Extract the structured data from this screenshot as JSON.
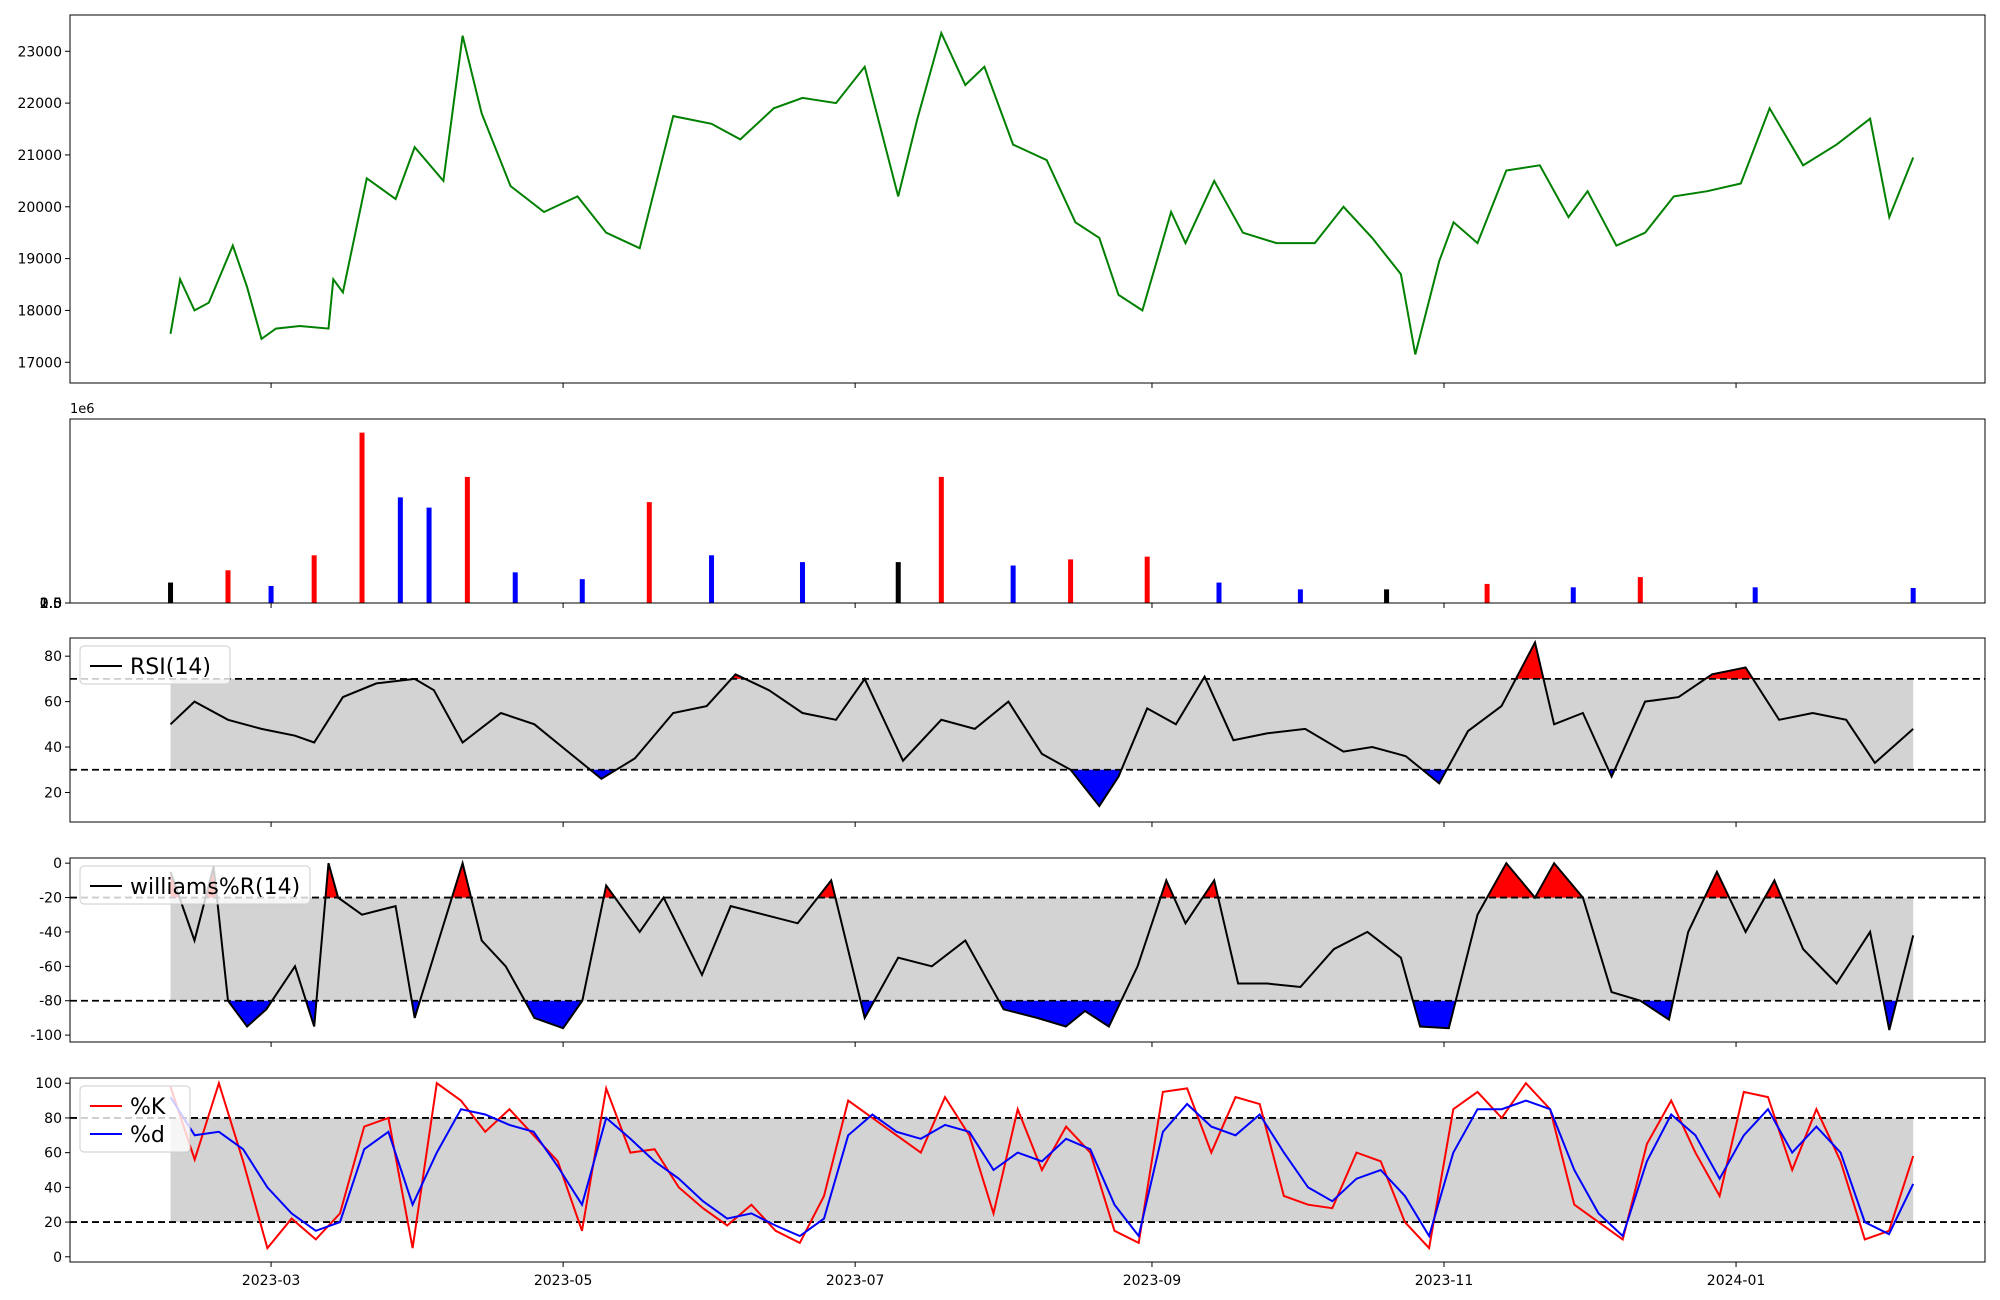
{
  "chart_data": [
    {
      "panel": "price",
      "type": "line",
      "color": "#008000",
      "ylim": [
        16600,
        23700
      ],
      "yticks": [
        "17000",
        "18000",
        "19000",
        "20000",
        "21000",
        "22000",
        "23000"
      ],
      "x": [
        "2023-02-08",
        "2023-02-10",
        "2023-02-13",
        "2023-02-16",
        "2023-02-21",
        "2023-02-24",
        "2023-02-27",
        "2023-03-02",
        "2023-03-07",
        "2023-03-13",
        "2023-03-14",
        "2023-03-16",
        "2023-03-21",
        "2023-03-27",
        "2023-03-31",
        "2023-04-06",
        "2023-04-10",
        "2023-04-14",
        "2023-04-20",
        "2023-04-27",
        "2023-05-04",
        "2023-05-10",
        "2023-05-17",
        "2023-05-24",
        "2023-06-01",
        "2023-06-07",
        "2023-06-14",
        "2023-06-20",
        "2023-06-27",
        "2023-07-03",
        "2023-07-10",
        "2023-07-14",
        "2023-07-19",
        "2023-07-24",
        "2023-07-28",
        "2023-08-03",
        "2023-08-10",
        "2023-08-16",
        "2023-08-21",
        "2023-08-25",
        "2023-08-30",
        "2023-09-05",
        "2023-09-08",
        "2023-09-14",
        "2023-09-20",
        "2023-09-27",
        "2023-10-05",
        "2023-10-11",
        "2023-10-17",
        "2023-10-23",
        "2023-10-26",
        "2023-10-31",
        "2023-11-03",
        "2023-11-08",
        "2023-11-14",
        "2023-11-21",
        "2023-11-27",
        "2023-12-01",
        "2023-12-07",
        "2023-12-13",
        "2023-12-19",
        "2023-12-26",
        "2024-01-02",
        "2024-01-08",
        "2024-01-15",
        "2024-01-22",
        "2024-01-29",
        "2024-02-02",
        "2024-02-07"
      ],
      "values": [
        17550,
        18600,
        18000,
        18150,
        19250,
        18450,
        17450,
        17650,
        17700,
        17650,
        18600,
        18350,
        20550,
        20150,
        21150,
        20500,
        23300,
        21800,
        20400,
        19900,
        20200,
        19500,
        19200,
        21750,
        21600,
        21300,
        21900,
        22100,
        22000,
        22700,
        20200,
        21700,
        23350,
        22350,
        22700,
        21200,
        20900,
        19700,
        19400,
        18300,
        18000,
        19900,
        19300,
        20500,
        19500,
        19300,
        19300,
        20000,
        19400,
        18700,
        17150,
        18950,
        19700,
        19300,
        20700,
        20800,
        19800,
        20300,
        19250,
        19500,
        20200,
        20300,
        20450,
        21900,
        20800,
        21200,
        21700,
        19800,
        20950
      ]
    },
    {
      "panel": "volume",
      "type": "bar",
      "ylim": [
        0,
        2700000
      ],
      "yticks": [
        "0.0",
        "0.5",
        "1.0",
        "1.5",
        "2.0",
        "2.5"
      ],
      "offset_text": "1e6",
      "colors": {
        "up": "#ff0000",
        "down": "#0000ff",
        "flat": "#000000"
      },
      "x": [
        "2023-02-08",
        "2023-02-20",
        "2023-03-01",
        "2023-03-10",
        "2023-03-20",
        "2023-03-28",
        "2023-04-03",
        "2023-04-11",
        "2023-04-21",
        "2023-05-05",
        "2023-05-19",
        "2023-06-01",
        "2023-06-20",
        "2023-07-10",
        "2023-07-19",
        "2023-08-03",
        "2023-08-15",
        "2023-08-31",
        "2023-09-15",
        "2023-10-02",
        "2023-10-20",
        "2023-11-10",
        "2023-11-28",
        "2023-12-12",
        "2024-01-05",
        "2024-02-07"
      ],
      "values": [
        300000,
        480000,
        250000,
        700000,
        2500000,
        1550000,
        1400000,
        1850000,
        450000,
        350000,
        1480000,
        700000,
        600000,
        600000,
        1850000,
        550000,
        640000,
        680000,
        300000,
        200000,
        200000,
        280000,
        230000,
        380000,
        230000,
        220000
      ]
    },
    {
      "panel": "rsi",
      "type": "line",
      "legend": "RSI(14)",
      "ylim": [
        7,
        88
      ],
      "yticks": [
        "20",
        "40",
        "60",
        "80"
      ],
      "band": [
        30,
        70
      ],
      "overbought_fill": "#ff0000",
      "oversold_fill": "#0000ff",
      "x": [
        "2023-02-08",
        "2023-02-13",
        "2023-02-20",
        "2023-02-27",
        "2023-03-06",
        "2023-03-10",
        "2023-03-16",
        "2023-03-23",
        "2023-03-31",
        "2023-04-04",
        "2023-04-10",
        "2023-04-18",
        "2023-04-25",
        "2023-05-02",
        "2023-05-09",
        "2023-05-16",
        "2023-05-24",
        "2023-05-31",
        "2023-06-06",
        "2023-06-13",
        "2023-06-20",
        "2023-06-27",
        "2023-07-03",
        "2023-07-11",
        "2023-07-19",
        "2023-07-26",
        "2023-08-02",
        "2023-08-09",
        "2023-08-15",
        "2023-08-21",
        "2023-08-25",
        "2023-08-31",
        "2023-09-06",
        "2023-09-12",
        "2023-09-18",
        "2023-09-25",
        "2023-10-03",
        "2023-10-11",
        "2023-10-17",
        "2023-10-24",
        "2023-10-31",
        "2023-11-06",
        "2023-11-13",
        "2023-11-20",
        "2023-11-24",
        "2023-11-30",
        "2023-12-06",
        "2023-12-13",
        "2023-12-20",
        "2023-12-27",
        "2024-01-03",
        "2024-01-10",
        "2024-01-17",
        "2024-01-24",
        "2024-01-30",
        "2024-02-07"
      ],
      "values": [
        50,
        60,
        52,
        48,
        45,
        42,
        62,
        68,
        70,
        65,
        42,
        55,
        50,
        38,
        26,
        35,
        55,
        58,
        72,
        65,
        55,
        52,
        70,
        34,
        52,
        48,
        60,
        37,
        30,
        14,
        27,
        57,
        50,
        71,
        43,
        46,
        48,
        38,
        40,
        36,
        24,
        47,
        58,
        86,
        50,
        55,
        27,
        60,
        62,
        72,
        75,
        52,
        55,
        52,
        33,
        48
      ]
    },
    {
      "panel": "williams",
      "type": "line",
      "legend": "williams%R(14)",
      "ylim": [
        -104,
        3
      ],
      "yticks": [
        "0",
        "-20",
        "-40",
        "-60",
        "-80",
        "-100"
      ],
      "band": [
        -80,
        -20
      ],
      "overbought_fill": "#ff0000",
      "oversold_fill": "#0000ff",
      "x": [
        "2023-02-08",
        "2023-02-13",
        "2023-02-17",
        "2023-02-20",
        "2023-02-24",
        "2023-02-28",
        "2023-03-06",
        "2023-03-10",
        "2023-03-13",
        "2023-03-15",
        "2023-03-20",
        "2023-03-27",
        "2023-03-31",
        "2023-04-05",
        "2023-04-10",
        "2023-04-14",
        "2023-04-19",
        "2023-04-25",
        "2023-05-01",
        "2023-05-05",
        "2023-05-10",
        "2023-05-17",
        "2023-05-22",
        "2023-05-30",
        "2023-06-05",
        "2023-06-12",
        "2023-06-19",
        "2023-06-26",
        "2023-07-03",
        "2023-07-10",
        "2023-07-17",
        "2023-07-24",
        "2023-08-01",
        "2023-08-08",
        "2023-08-14",
        "2023-08-18",
        "2023-08-23",
        "2023-08-29",
        "2023-09-04",
        "2023-09-08",
        "2023-09-14",
        "2023-09-19",
        "2023-09-25",
        "2023-10-02",
        "2023-10-09",
        "2023-10-16",
        "2023-10-23",
        "2023-10-27",
        "2023-11-02",
        "2023-11-08",
        "2023-11-14",
        "2023-11-20",
        "2023-11-24",
        "2023-11-30",
        "2023-12-06",
        "2023-12-12",
        "2023-12-18",
        "2023-12-22",
        "2023-12-28",
        "2024-01-03",
        "2024-01-09",
        "2024-01-15",
        "2024-01-22",
        "2024-01-29",
        "2024-02-02",
        "2024-02-07"
      ],
      "values": [
        -5,
        -45,
        -2,
        -80,
        -95,
        -85,
        -60,
        -95,
        0,
        -20,
        -30,
        -25,
        -90,
        -45,
        0,
        -45,
        -60,
        -90,
        -96,
        -80,
        -13,
        -40,
        -20,
        -65,
        -25,
        -30,
        -35,
        -10,
        -90,
        -55,
        -60,
        -45,
        -85,
        -90,
        -95,
        -86,
        -95,
        -60,
        -10,
        -35,
        -10,
        -70,
        -70,
        -72,
        -50,
        -40,
        -55,
        -95,
        -96,
        -30,
        0,
        -20,
        0,
        -20,
        -75,
        -80,
        -91,
        -40,
        -5,
        -40,
        -10,
        -50,
        -70,
        -40,
        -97,
        -42
      ]
    },
    {
      "panel": "stochastic",
      "type": "line",
      "ylim": [
        -3,
        103
      ],
      "yticks": [
        "0",
        "20",
        "40",
        "60",
        "80",
        "100"
      ],
      "band": [
        20,
        80
      ],
      "series": [
        {
          "name": "%K",
          "color": "#ff0000",
          "values": [
            98,
            56,
            100,
            55,
            5,
            22,
            10,
            25,
            75,
            80,
            5,
            100,
            90,
            72,
            85,
            70,
            55,
            15,
            97,
            60,
            62,
            40,
            28,
            18,
            30,
            15,
            8,
            35,
            90,
            80,
            70,
            60,
            92,
            70,
            25,
            85,
            50,
            75,
            60,
            15,
            8,
            95,
            97,
            60,
            92,
            88,
            35,
            30,
            28,
            60,
            55,
            20,
            5,
            85,
            95,
            80,
            100,
            85,
            30,
            20,
            10,
            65,
            90,
            60,
            35,
            95,
            92,
            50,
            85,
            55,
            10,
            15,
            58
          ]
        },
        {
          "name": "%d",
          "color": "#0000ff",
          "values": [
            92,
            70,
            72,
            62,
            40,
            25,
            15,
            20,
            62,
            72,
            30,
            60,
            85,
            82,
            76,
            72,
            52,
            30,
            80,
            68,
            55,
            45,
            32,
            22,
            25,
            18,
            12,
            22,
            70,
            82,
            72,
            68,
            76,
            72,
            50,
            60,
            55,
            68,
            62,
            30,
            12,
            72,
            88,
            75,
            70,
            82,
            60,
            40,
            32,
            45,
            50,
            35,
            12,
            60,
            85,
            85,
            90,
            85,
            50,
            25,
            12,
            55,
            82,
            70,
            45,
            70,
            85,
            60,
            75,
            60,
            20,
            13,
            42
          ]
        }
      ],
      "x_start": "2023-02-08",
      "x_end": "2024-02-07"
    }
  ],
  "x_axis": {
    "range": [
      "2023-01-18",
      "2024-02-22"
    ],
    "ticks": [
      {
        "date": "2023-03-01",
        "label": "2023-03"
      },
      {
        "date": "2023-05-01",
        "label": "2023-05"
      },
      {
        "date": "2023-07-01",
        "label": "2023-07"
      },
      {
        "date": "2023-09-01",
        "label": "2023-09"
      },
      {
        "date": "2023-11-01",
        "label": "2023-11"
      },
      {
        "date": "2024-01-01",
        "label": "2024-01"
      }
    ]
  },
  "band_fill": "#d3d3d3"
}
